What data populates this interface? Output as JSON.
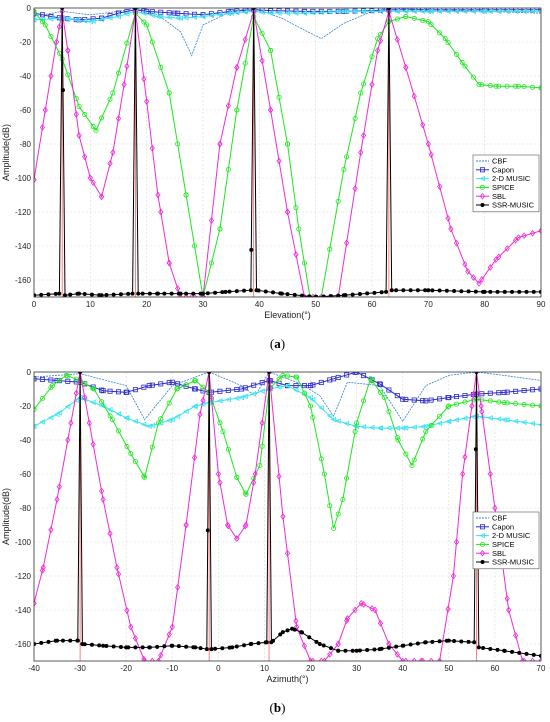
{
  "colors": {
    "CBF": "#2f7fd0",
    "Capon": "#2b2bcc",
    "2-D MUSIC": "#39e2f2",
    "SPICE": "#1ee81e",
    "SBL": "#ee2bd8",
    "SSR-MUSIC": "#000000"
  },
  "chart_data": [
    {
      "type": "line",
      "caption": "(a)",
      "xlabel": "Elevation(°)",
      "ylabel": "Amplitude(dB)",
      "xlim": [
        0,
        90
      ],
      "ylim": [
        -170,
        0
      ],
      "xticks": [
        0,
        10,
        20,
        30,
        40,
        50,
        60,
        70,
        80,
        90
      ],
      "yticks": [
        0,
        -20,
        -40,
        -60,
        -80,
        -100,
        -120,
        -140,
        -160
      ],
      "grid": true,
      "legend": "right",
      "legend_entries": [
        "CBF",
        "Capon",
        "2-D MUSIC",
        "SPICE",
        "SBL",
        "SSR-MUSIC"
      ],
      "true_sources": [
        5,
        18,
        39,
        63
      ],
      "series": [
        {
          "name": "CBF",
          "marker": "none",
          "dash": true,
          "x": [
            0,
            5,
            10,
            15,
            18,
            22,
            26,
            28,
            30,
            35,
            39,
            44,
            48,
            51,
            55,
            60,
            63,
            70,
            80,
            90
          ],
          "y": [
            -5,
            -2,
            -4,
            -2,
            0,
            -4,
            -14,
            -28,
            -10,
            -2,
            0,
            -6,
            -13,
            -18,
            -9,
            -2,
            0,
            -1,
            -2,
            -3
          ]
        },
        {
          "name": "Capon",
          "marker": "square",
          "x": [
            0,
            3,
            5,
            8,
            12,
            15,
            18,
            20,
            25,
            30,
            35,
            39,
            42,
            48,
            55,
            60,
            63,
            70,
            80,
            90
          ],
          "y": [
            -3,
            -5,
            -6,
            -7,
            -6,
            -3,
            -1,
            -2,
            -3,
            -4,
            -2,
            -1,
            -1.5,
            -2,
            -2,
            -1.5,
            -1,
            -1,
            -1,
            -1
          ]
        },
        {
          "name": "2-D MUSIC",
          "marker": "triangle",
          "x": [
            0,
            5,
            10,
            15,
            18,
            22,
            26,
            30,
            35,
            39,
            42,
            48,
            55,
            63,
            70,
            80,
            90
          ],
          "y": [
            -7,
            -6,
            -8,
            -5,
            -2,
            -5,
            -6,
            -5,
            -3,
            -2,
            -3,
            -3,
            -2,
            -2,
            -2,
            -2,
            -2
          ]
        },
        {
          "name": "SPICE",
          "marker": "circle",
          "x": [
            0,
            2,
            5,
            8,
            11,
            14,
            18,
            20,
            24,
            27,
            30,
            33,
            36,
            39,
            42,
            45,
            47,
            49,
            51,
            55,
            58,
            61,
            63,
            66,
            70,
            73,
            76,
            79,
            82,
            86,
            90
          ],
          "y": [
            -2,
            -10,
            -30,
            -58,
            -72,
            -50,
            -3,
            -10,
            -50,
            -110,
            -170,
            -130,
            -60,
            -5,
            -25,
            -80,
            -130,
            -170,
            -170,
            -95,
            -50,
            -18,
            -8,
            -5,
            -8,
            -18,
            -32,
            -45,
            -46,
            -46,
            -47
          ]
        },
        {
          "name": "SBL",
          "marker": "diamond",
          "x": [
            0,
            2,
            4,
            5,
            6,
            8,
            10,
            12,
            14,
            16,
            18,
            20,
            22,
            24,
            26,
            28,
            30,
            33,
            36,
            39,
            42,
            45,
            48,
            50,
            54,
            58,
            61,
            63,
            66,
            70,
            74,
            77,
            79,
            82,
            86,
            90
          ],
          "y": [
            -101,
            -60,
            -20,
            -2,
            -25,
            -75,
            -100,
            -111,
            -85,
            -45,
            -2,
            -55,
            -110,
            -150,
            -170,
            -170,
            -170,
            -80,
            -35,
            -2,
            -60,
            -120,
            -170,
            -170,
            -170,
            -85,
            -25,
            -2,
            -35,
            -80,
            -130,
            -155,
            -162,
            -148,
            -135,
            -131
          ]
        },
        {
          "name": "SSR-MUSIC",
          "marker": "circle",
          "x": [
            0,
            4.5,
            5,
            5.5,
            8,
            12,
            17.5,
            18,
            18.5,
            22,
            26,
            30,
            34,
            38.5,
            39,
            39.5,
            44,
            50,
            55,
            62.5,
            63,
            63.5,
            70,
            80,
            90
          ],
          "y": [
            -169,
            -168,
            0,
            -169,
            -168,
            -169,
            -168,
            0,
            -168,
            -168,
            -168,
            -168,
            -167,
            -166,
            0,
            -166,
            -168,
            -170,
            -169,
            -167,
            0,
            -166,
            -166,
            -167,
            -167
          ]
        }
      ]
    },
    {
      "type": "line",
      "caption": "(b)",
      "xlabel": "Azimuth(°)",
      "ylabel": "Amplitude(dB)",
      "xlim": [
        -40,
        70
      ],
      "ylim": [
        -170,
        0
      ],
      "xticks": [
        -40,
        -30,
        -20,
        -10,
        0,
        10,
        20,
        30,
        40,
        50,
        60,
        70
      ],
      "yticks": [
        0,
        -20,
        -40,
        -60,
        -80,
        -100,
        -120,
        -140,
        -160
      ],
      "grid": true,
      "legend": "right",
      "legend_entries": [
        "CBF",
        "Capon",
        "2-D MUSIC",
        "SPICE",
        "SBL",
        "SSR-MUSIC"
      ],
      "true_sources": [
        -30,
        -2,
        11,
        56
      ],
      "series": [
        {
          "name": "CBF",
          "marker": "none",
          "dash": true,
          "x": [
            -40,
            -30,
            -20,
            -16,
            -10,
            -2,
            5,
            8,
            11,
            18,
            22,
            25,
            28,
            35,
            40,
            45,
            50,
            56,
            62,
            70
          ],
          "y": [
            -3,
            -1,
            -8,
            -28,
            -8,
            0,
            -8,
            -14,
            0,
            -7,
            -14,
            -26,
            -6,
            -8,
            -29,
            -8,
            -2,
            0,
            -2,
            -5
          ]
        },
        {
          "name": "Capon",
          "marker": "square",
          "x": [
            -40,
            -35,
            -30,
            -25,
            -20,
            -15,
            -10,
            -5,
            -2,
            5,
            11,
            15,
            20,
            25,
            30,
            35,
            40,
            45,
            50,
            56,
            62,
            70
          ],
          "y": [
            -4,
            -5,
            -6,
            -11,
            -12,
            -8,
            -6,
            -10,
            -12,
            -10,
            -5,
            -8,
            -8,
            -4,
            0,
            -7,
            -16,
            -17,
            -15,
            -13,
            -12,
            -10
          ]
        },
        {
          "name": "2-D MUSIC",
          "marker": "triangle",
          "x": [
            -40,
            -35,
            -30,
            -25,
            -20,
            -15,
            -10,
            -5,
            -2,
            5,
            11,
            15,
            20,
            25,
            30,
            35,
            40,
            45,
            50,
            56,
            62,
            70
          ],
          "y": [
            -32,
            -25,
            -15,
            -20,
            -27,
            -32,
            -28,
            -20,
            -18,
            -15,
            -10,
            -8,
            -15,
            -28,
            -32,
            -33,
            -33,
            -32,
            -29,
            -26,
            -28,
            -31
          ]
        },
        {
          "name": "SPICE",
          "marker": "circle",
          "x": [
            -40,
            -36,
            -33,
            -30,
            -27,
            -23,
            -19,
            -16,
            -13,
            -9,
            -5,
            -2,
            1,
            4,
            6,
            9,
            11,
            14,
            17,
            20,
            23,
            25,
            27,
            30,
            33,
            36,
            39,
            42,
            45,
            50,
            56,
            62,
            70
          ],
          "y": [
            -22,
            -8,
            -2,
            -5,
            -10,
            -28,
            -48,
            -62,
            -30,
            -10,
            -5,
            -12,
            -35,
            -62,
            -72,
            -55,
            -10,
            -2,
            -3,
            -20,
            -60,
            -92,
            -75,
            -30,
            -4,
            -15,
            -40,
            -55,
            -35,
            -20,
            -16,
            -18,
            -20
          ]
        },
        {
          "name": "SBL",
          "marker": "diamond",
          "x": [
            -40,
            -38,
            -35,
            -32,
            -30,
            -28,
            -25,
            -22,
            -19,
            -16,
            -13,
            -10,
            -7,
            -4,
            -2,
            0,
            2,
            4,
            6,
            8,
            11,
            14,
            17,
            20,
            23,
            26,
            28,
            31,
            34,
            37,
            40,
            44,
            48,
            51,
            53,
            55,
            56,
            57,
            60,
            63,
            66,
            70
          ],
          "y": [
            -136,
            -115,
            -75,
            -30,
            0,
            -30,
            -75,
            -115,
            -150,
            -170,
            -170,
            -150,
            -90,
            -25,
            0,
            -60,
            -90,
            -98,
            -90,
            -60,
            0,
            -85,
            -150,
            -170,
            -170,
            -160,
            -145,
            -136,
            -140,
            -160,
            -170,
            -170,
            -170,
            -120,
            -60,
            -20,
            0,
            -20,
            -80,
            -140,
            -170,
            -170
          ]
        },
        {
          "name": "SSR-MUSIC",
          "marker": "circle",
          "x": [
            -40,
            -35,
            -30.5,
            -30,
            -29.5,
            -25,
            -20,
            -15,
            -10,
            -5,
            -2.5,
            -2,
            -1.5,
            3,
            7,
            10.5,
            11,
            11.5,
            14,
            16,
            18,
            22,
            26,
            30,
            35,
            40,
            45,
            50,
            55.5,
            56,
            56.5,
            62,
            70
          ],
          "y": [
            -160,
            -158,
            -158,
            0,
            -160,
            -161,
            -162,
            -162,
            -161,
            -162,
            -163,
            0,
            -163,
            -162,
            -160,
            -159,
            0,
            -159,
            -153,
            -151,
            -153,
            -160,
            -164,
            -164,
            -163,
            -161,
            -159,
            -158,
            -159,
            0,
            -162,
            -164,
            -167
          ]
        }
      ]
    }
  ]
}
